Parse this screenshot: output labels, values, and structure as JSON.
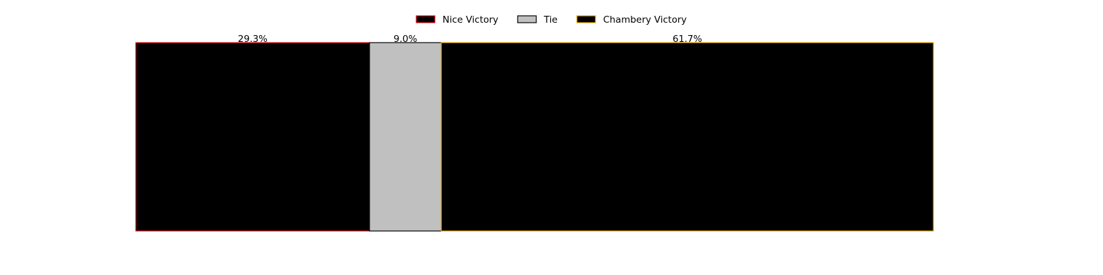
{
  "chart_data": {
    "type": "bar",
    "orientation": "horizontal-stacked",
    "categories": [
      "Nice Victory",
      "Tie",
      "Chambery Victory"
    ],
    "values": [
      29.3,
      9.0,
      61.7
    ],
    "labels": [
      "29.3%",
      "9.0%",
      "61.7%"
    ],
    "title": "",
    "xlabel": "",
    "ylabel": "",
    "xlim": [
      0,
      100
    ],
    "grid": false,
    "axes_visible": false,
    "legend_placement": "top-center",
    "series": [
      {
        "name": "Nice Victory",
        "value": 29.3,
        "label": "29.3%",
        "fill": "#000000",
        "edge": "#e8141c"
      },
      {
        "name": "Tie",
        "value": 9.0,
        "label": "9.0%",
        "fill": "#c0c0c0",
        "edge": "#000000"
      },
      {
        "name": "Chambery Victory",
        "value": 61.7,
        "label": "61.7%",
        "fill": "#000000",
        "edge": "#f0a800"
      }
    ]
  }
}
